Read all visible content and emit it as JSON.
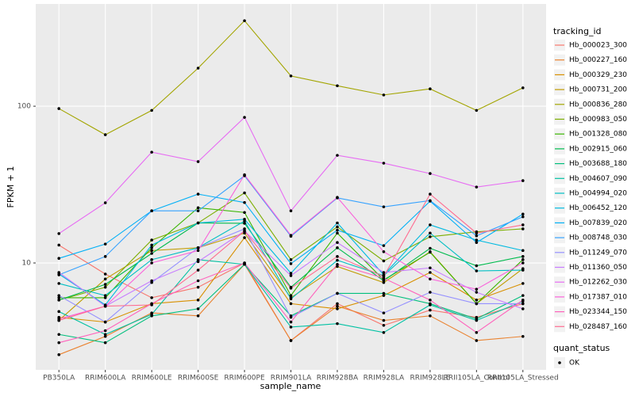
{
  "chart_data": {
    "type": "line",
    "x_label": "sample_name",
    "y_label": "FPKM + 1",
    "ylog": true,
    "ylim": [
      2.08,
      449
    ],
    "yticks": [
      10,
      100
    ],
    "grid": true,
    "legend_title": "tracking_id",
    "legend_position": "right",
    "status_legend_title": "quant_status",
    "status_values": [
      "OK"
    ],
    "categories": [
      "PB350LA",
      "RRIM600LA",
      "RRIM600LE",
      "RRIM600SE",
      "RRIM600PE",
      "RRIM901LA",
      "RRIM928BA",
      "RRIM928LA",
      "RRIM928LE",
      "RRII105LA_Control",
      "RRII105LA_Stressed"
    ],
    "series": [
      {
        "name": "Hb_000023_300",
        "color": "#F8766D",
        "values": [
          13,
          8.5,
          6,
          7,
          10,
          3.2,
          5.5,
          4,
          5,
          4.5,
          5.5
        ]
      },
      {
        "name": "Hb_000227_160",
        "color": "#EA8331",
        "values": [
          2.6,
          3.4,
          4.8,
          4.6,
          9.8,
          3.2,
          5.3,
          4.3,
          4.6,
          3.2,
          3.4
        ]
      },
      {
        "name": "Hb_000329_230",
        "color": "#D89000",
        "values": [
          4.5,
          4.2,
          5.5,
          5.8,
          14.5,
          5.5,
          5.1,
          6.2,
          8.7,
          5.8,
          7.4
        ]
      },
      {
        "name": "Hb_000731_200",
        "color": "#C09B00",
        "values": [
          4.3,
          7.9,
          12,
          12.5,
          15.5,
          6,
          9.5,
          7.5,
          11.8,
          5.5,
          9.2
        ]
      },
      {
        "name": "Hb_000836_280",
        "color": "#A3A500",
        "values": [
          96.6,
          65.8,
          94,
          175,
          351,
          156,
          135,
          118,
          129,
          94,
          131
        ]
      },
      {
        "name": "Hb_000983_050",
        "color": "#7CAE00",
        "values": [
          5.8,
          7,
          14,
          18,
          28,
          10.5,
          17,
          10.3,
          14.7,
          15.8,
          16.5
        ]
      },
      {
        "name": "Hb_001328_080",
        "color": "#39B600",
        "values": [
          6,
          6,
          12.5,
          22.5,
          21,
          6.2,
          15.5,
          7.8,
          11.7,
          5.5,
          10.5
        ]
      },
      {
        "name": "Hb_002915_060",
        "color": "#00BB4E",
        "values": [
          5.8,
          7.3,
          11.5,
          18,
          17.9,
          7,
          12.5,
          7.7,
          12.4,
          9.6,
          11
        ]
      },
      {
        "name": "Hb_003688_180",
        "color": "#00BF7D",
        "values": [
          3.5,
          3.1,
          4.6,
          5.1,
          9.8,
          4.6,
          6.4,
          6.4,
          5.5,
          4.4,
          6.2
        ]
      },
      {
        "name": "Hb_004607_090",
        "color": "#00C1A3",
        "values": [
          4.9,
          3.5,
          4.7,
          10.5,
          9.8,
          3.9,
          4.1,
          3.6,
          5.4,
          4.3,
          5.7
        ]
      },
      {
        "name": "Hb_004994_020",
        "color": "#00BFC4",
        "values": [
          7.4,
          6.2,
          10.5,
          12.5,
          18.5,
          5.9,
          10.4,
          8.3,
          15.5,
          8.9,
          9
        ]
      },
      {
        "name": "Hb_006452_120",
        "color": "#00BAE0",
        "values": [
          8.5,
          5.4,
          13,
          18,
          19,
          8.6,
          18,
          8.4,
          17.5,
          14,
          12
        ]
      },
      {
        "name": "Hb_007839_020",
        "color": "#00B0F6",
        "values": [
          10.7,
          13.2,
          21.5,
          27.5,
          24.3,
          9.9,
          16.2,
          12.9,
          24.8,
          13.5,
          20.5
        ]
      },
      {
        "name": "Hb_008748_030",
        "color": "#35A2FF",
        "values": [
          8.4,
          11,
          21.5,
          21.5,
          36,
          14.8,
          26,
          22.8,
          25,
          14.9,
          19.7
        ]
      },
      {
        "name": "Hb_011249_070",
        "color": "#9590FF",
        "values": [
          6.2,
          4.2,
          7.5,
          12.5,
          16.5,
          4.5,
          6.4,
          4.8,
          6.5,
          5.5,
          5.5
        ]
      },
      {
        "name": "Hb_011360_050",
        "color": "#C77CFF",
        "values": [
          8.7,
          5.3,
          7.7,
          10.2,
          16,
          8.3,
          13.5,
          8.7,
          9.3,
          6.5,
          5.1
        ]
      },
      {
        "name": "Hb_012262_030",
        "color": "#E76BF3",
        "values": [
          15.4,
          24.2,
          50.9,
          44.3,
          84.9,
          21.5,
          48.6,
          43.3,
          37.2,
          30.5,
          33.5
        ]
      },
      {
        "name": "Hb_017387_010",
        "color": "#FA62DB",
        "values": [
          4.4,
          5.3,
          10,
          12,
          36.5,
          15,
          26.2,
          11.8,
          7.9,
          6.8,
          10
        ]
      },
      {
        "name": "Hb_023344_150",
        "color": "#FF62BC",
        "values": [
          3.1,
          3.7,
          5.5,
          7.7,
          10,
          4.2,
          9.8,
          8,
          5.8,
          3.6,
          5.8
        ]
      },
      {
        "name": "Hb_028487_160",
        "color": "#FF6C91",
        "values": [
          4.3,
          5.3,
          5.4,
          9,
          16,
          6.9,
          11,
          8.2,
          27.5,
          15.5,
          17.5
        ]
      }
    ]
  }
}
